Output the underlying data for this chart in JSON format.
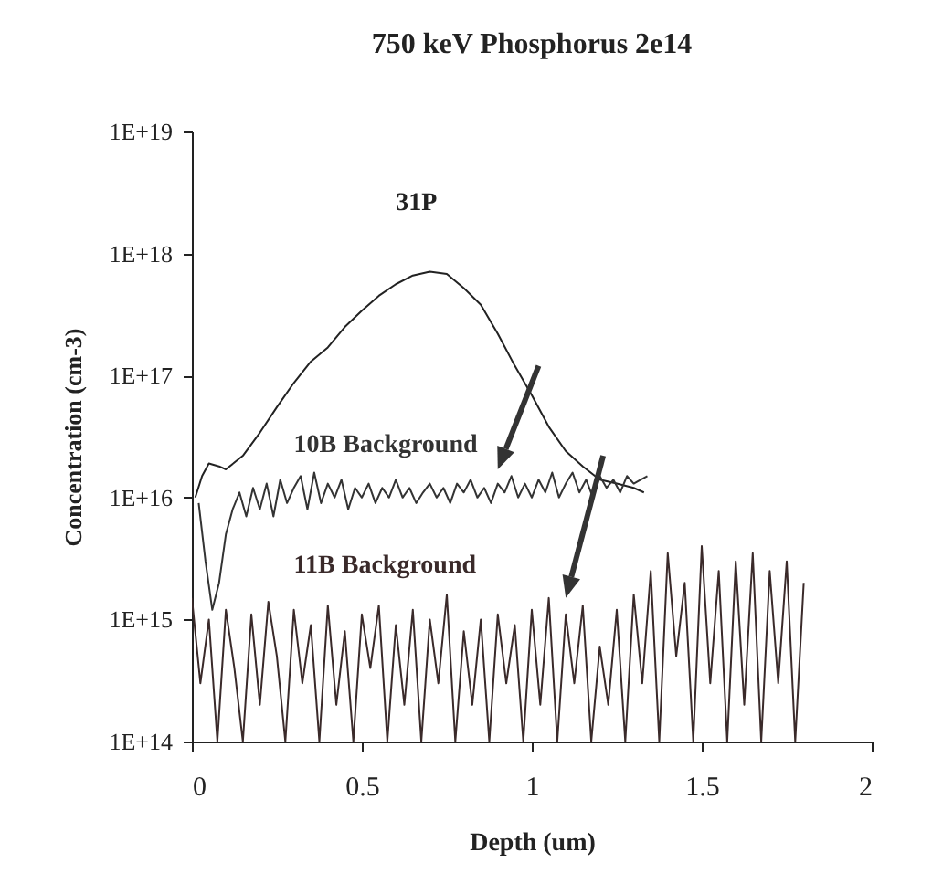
{
  "chart_data": {
    "type": "line",
    "title": "750 keV Phosphorus 2e14",
    "xlabel": "Depth (um)",
    "ylabel": "Concentration (cm-3)",
    "log": "y",
    "xlim": [
      0,
      2
    ],
    "xticks": [
      0,
      0.5,
      1,
      1.5,
      2
    ],
    "ylim": [
      100000000000000.0,
      1e+19
    ],
    "yticks": [
      {
        "value": 100000000000000.0,
        "label": "1E+14"
      },
      {
        "value": 1000000000000000.0,
        "label": "1E+15"
      },
      {
        "value": 1e+16,
        "label": "1E+16"
      },
      {
        "value": 1e+17,
        "label": "1E+17"
      },
      {
        "value": 1e+18,
        "label": "1E+18"
      },
      {
        "value": 1e+19,
        "label": "1E+19"
      }
    ],
    "series": [
      {
        "name": "31P",
        "color": "#222222",
        "x": [
          0.01,
          0.03,
          0.05,
          0.08,
          0.1,
          0.15,
          0.2,
          0.25,
          0.3,
          0.35,
          0.4,
          0.45,
          0.5,
          0.55,
          0.6,
          0.65,
          0.7,
          0.75,
          0.8,
          0.85,
          0.9,
          0.95,
          1.0,
          1.05,
          1.1,
          1.15,
          1.2,
          1.25,
          1.3,
          1.33
        ],
        "values": [
          1e+16,
          1.5e+16,
          1.9e+16,
          1.8e+16,
          1.7e+16,
          2.2e+16,
          3.4e+16,
          5.5e+16,
          8.7e+16,
          1.3e+17,
          1.7e+17,
          2.5e+17,
          3.4e+17,
          4.5e+17,
          5.6e+17,
          6.6e+17,
          7.1e+17,
          6.8e+17,
          5.2e+17,
          3.8e+17,
          2.2e+17,
          1.2e+17,
          6.9e+16,
          3.8e+16,
          2.4e+16,
          1.8e+16,
          1.4e+16,
          1.3e+16,
          1.2e+16,
          1.1e+16
        ]
      },
      {
        "name": "10B Background",
        "color": "#333333",
        "x": [
          0.02,
          0.04,
          0.06,
          0.08,
          0.1,
          0.12,
          0.14,
          0.16,
          0.18,
          0.2,
          0.22,
          0.24,
          0.26,
          0.28,
          0.3,
          0.32,
          0.34,
          0.36,
          0.38,
          0.4,
          0.42,
          0.44,
          0.46,
          0.48,
          0.5,
          0.52,
          0.54,
          0.56,
          0.58,
          0.6,
          0.62,
          0.64,
          0.66,
          0.68,
          0.7,
          0.72,
          0.74,
          0.76,
          0.78,
          0.8,
          0.82,
          0.84,
          0.86,
          0.88,
          0.9,
          0.92,
          0.94,
          0.96,
          0.98,
          1.0,
          1.02,
          1.04,
          1.06,
          1.08,
          1.1,
          1.12,
          1.14,
          1.16,
          1.18,
          1.2,
          1.22,
          1.24,
          1.26,
          1.28,
          1.3,
          1.32,
          1.34
        ],
        "values": [
          9000000000000000.0,
          3000000000000000.0,
          1200000000000000.0,
          2000000000000000.0,
          5000000000000000.0,
          8000000000000000.0,
          1.1e+16,
          7000000000000000.0,
          1.2e+16,
          8000000000000000.0,
          1.3e+16,
          7000000000000000.0,
          1.4e+16,
          9000000000000000.0,
          1.2e+16,
          1.5e+16,
          8000000000000000.0,
          1.6e+16,
          9000000000000000.0,
          1.3e+16,
          1e+16,
          1.4e+16,
          8000000000000000.0,
          1.2e+16,
          1e+16,
          1.3e+16,
          9000000000000000.0,
          1.2e+16,
          1e+16,
          1.4e+16,
          1e+16,
          1.2e+16,
          9000000000000000.0,
          1.1e+16,
          1.3e+16,
          1e+16,
          1.2e+16,
          9000000000000000.0,
          1.3e+16,
          1.1e+16,
          1.4e+16,
          1e+16,
          1.2e+16,
          9000000000000000.0,
          1.3e+16,
          1.1e+16,
          1.5e+16,
          1e+16,
          1.3e+16,
          1e+16,
          1.4e+16,
          1.1e+16,
          1.6e+16,
          1e+16,
          1.3e+16,
          1.6e+16,
          1.1e+16,
          1.4e+16,
          1e+16,
          1.5e+16,
          1.2e+16,
          1.4e+16,
          1.1e+16,
          1.5e+16,
          1.3e+16,
          1.4e+16,
          1.5e+16
        ]
      },
      {
        "name": "11B Background",
        "color": "#3a2a2a",
        "x": [
          0,
          0.025,
          0.05,
          0.075,
          0.1,
          0.125,
          0.15,
          0.175,
          0.2,
          0.225,
          0.25,
          0.275,
          0.3,
          0.325,
          0.35,
          0.375,
          0.4,
          0.425,
          0.45,
          0.475,
          0.5,
          0.525,
          0.55,
          0.575,
          0.6,
          0.625,
          0.65,
          0.675,
          0.7,
          0.725,
          0.75,
          0.775,
          0.8,
          0.825,
          0.85,
          0.875,
          0.9,
          0.925,
          0.95,
          0.975,
          1.0,
          1.025,
          1.05,
          1.075,
          1.1,
          1.125,
          1.15,
          1.175,
          1.2,
          1.225,
          1.25,
          1.275,
          1.3,
          1.325,
          1.35,
          1.375,
          1.4,
          1.425,
          1.45,
          1.475,
          1.5,
          1.525,
          1.55,
          1.575,
          1.6,
          1.625,
          1.65,
          1.675,
          1.7,
          1.725,
          1.75,
          1.775,
          1.8
        ],
        "values": [
          1500000000000000.0,
          300000000000000.0,
          1000000000000000.0,
          100000000000000.0,
          1200000000000000.0,
          400000000000000.0,
          100000000000000.0,
          1100000000000000.0,
          200000000000000.0,
          1400000000000000.0,
          500000000000000.0,
          100000000000000.0,
          1200000000000000.0,
          300000000000000.0,
          900000000000000.0,
          100000000000000.0,
          1300000000000000.0,
          200000000000000.0,
          800000000000000.0,
          100000000000000.0,
          1100000000000000.0,
          400000000000000.0,
          1300000000000000.0,
          100000000000000.0,
          900000000000000.0,
          200000000000000.0,
          1200000000000000.0,
          100000000000000.0,
          1000000000000000.0,
          300000000000000.0,
          1600000000000000.0,
          100000000000000.0,
          800000000000000.0,
          200000000000000.0,
          1000000000000000.0,
          100000000000000.0,
          1100000000000000.0,
          300000000000000.0,
          900000000000000.0,
          100000000000000.0,
          1200000000000000.0,
          200000000000000.0,
          1500000000000000.0,
          100000000000000.0,
          1100000000000000.0,
          300000000000000.0,
          1300000000000000.0,
          100000000000000.0,
          600000000000000.0,
          200000000000000.0,
          1200000000000000.0,
          100000000000000.0,
          1600000000000000.0,
          300000000000000.0,
          2500000000000000.0,
          100000000000000.0,
          3500000000000000.0,
          500000000000000.0,
          2000000000000000.0,
          100000000000000.0,
          4000000000000000.0,
          300000000000000.0,
          2500000000000000.0,
          100000000000000.0,
          3000000000000000.0,
          200000000000000.0,
          3500000000000000.0,
          100000000000000.0,
          2500000000000000.0,
          300000000000000.0,
          3000000000000000.0,
          100000000000000.0,
          2000000000000000.0
        ]
      }
    ]
  }
}
